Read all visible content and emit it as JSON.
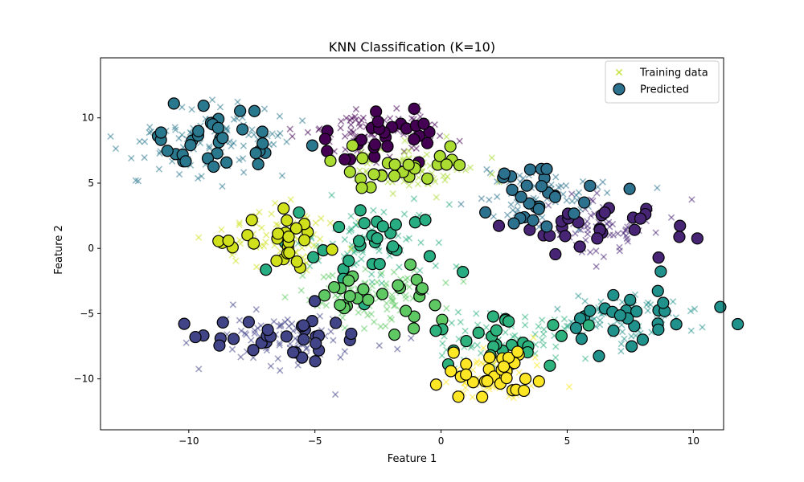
{
  "chart_data": {
    "type": "scatter",
    "title": "KNN Classification (K=10)",
    "xlabel": "Feature 1",
    "ylabel": "Feature 2",
    "xlim": [
      -13.5,
      11.2
    ],
    "ylim": [
      -13.9,
      14.6
    ],
    "xticks": [
      -10,
      -5,
      0,
      5,
      10
    ],
    "yticks": [
      -10,
      -5,
      0,
      5,
      10
    ],
    "grid": false,
    "legend_position": "top-right",
    "legend": [
      {
        "label": "Training data",
        "marker": "x",
        "color": "#bddf26"
      },
      {
        "label": "Predicted",
        "marker": "circle",
        "color": "#2c728e"
      }
    ],
    "marker_styles": {
      "training": {
        "marker": "x",
        "alpha": 0.5
      },
      "predicted": {
        "marker": "circle",
        "edgecolor": "#000000"
      }
    },
    "clusters": [
      {
        "class": 0,
        "color": "#440154",
        "center": [
          -2.5,
          8.7
        ],
        "spread": [
          1.4,
          1.1
        ],
        "training_count": 80,
        "predicted_count": 30
      },
      {
        "class": 1,
        "color": "#482475",
        "center": [
          6.0,
          1.5
        ],
        "spread": [
          1.4,
          1.1
        ],
        "training_count": 70,
        "predicted_count": 28
      },
      {
        "class": 2,
        "color": "#414487",
        "center": [
          -6.2,
          -6.8
        ],
        "spread": [
          1.5,
          1.2
        ],
        "training_count": 80,
        "predicted_count": 32
      },
      {
        "class": 3,
        "color": "#2a788e",
        "center": [
          -9.0,
          8.5
        ],
        "spread": [
          1.6,
          1.4
        ],
        "training_count": 90,
        "predicted_count": 35
      },
      {
        "class": 4,
        "color": "#2c728e",
        "center": [
          3.8,
          4.0
        ],
        "spread": [
          1.4,
          1.1
        ],
        "training_count": 70,
        "predicted_count": 28
      },
      {
        "class": 5,
        "color": "#21918c",
        "center": [
          7.4,
          -5.6
        ],
        "spread": [
          1.5,
          1.0
        ],
        "training_count": 75,
        "predicted_count": 28
      },
      {
        "class": 6,
        "color": "#27ad81",
        "center": [
          -3.2,
          0.2
        ],
        "spread": [
          1.4,
          1.6
        ],
        "training_count": 80,
        "predicted_count": 30
      },
      {
        "class": 7,
        "color": "#5ec962",
        "center": [
          -2.8,
          -3.6
        ],
        "spread": [
          1.6,
          1.2
        ],
        "training_count": 80,
        "predicted_count": 28
      },
      {
        "class": 8,
        "color": "#2db27d",
        "center": [
          2.6,
          -7.0
        ],
        "spread": [
          1.3,
          1.1
        ],
        "training_count": 70,
        "predicted_count": 24
      },
      {
        "class": 9,
        "color": "#aadc32",
        "center": [
          -1.0,
          6.3
        ],
        "spread": [
          1.2,
          0.9
        ],
        "training_count": 65,
        "predicted_count": 26
      },
      {
        "class": 10,
        "color": "#d0e11c",
        "center": [
          -6.3,
          0.6
        ],
        "spread": [
          1.3,
          1.2
        ],
        "training_count": 75,
        "predicted_count": 26
      },
      {
        "class": 11,
        "color": "#fde725",
        "center": [
          2.0,
          -9.6
        ],
        "spread": [
          1.2,
          1.1
        ],
        "training_count": 75,
        "predicted_count": 30
      }
    ]
  }
}
